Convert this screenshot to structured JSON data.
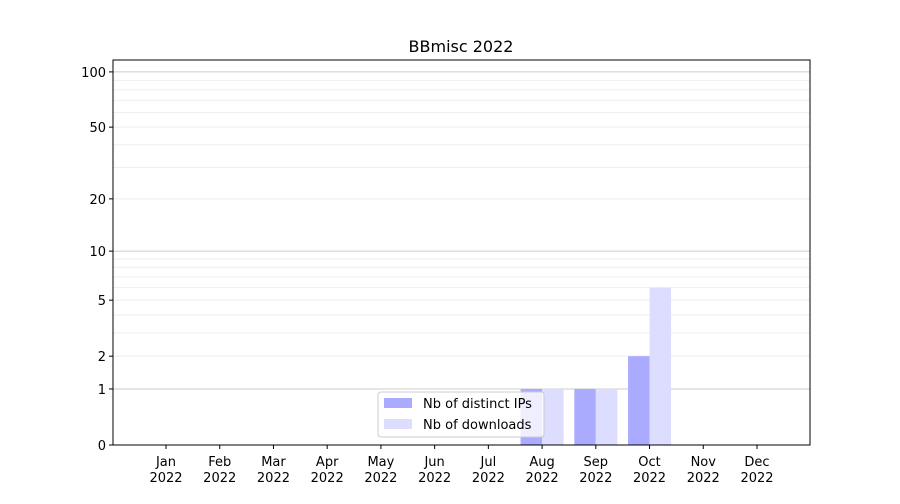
{
  "chart_data": {
    "type": "bar",
    "title": "BBmisc 2022",
    "xlabel": "",
    "ylabel": "",
    "yscale": "symlog (log10(1+y))",
    "ylim": [
      0,
      116
    ],
    "yticks": [
      0,
      1,
      2,
      5,
      10,
      20,
      50,
      100
    ],
    "grid": true,
    "legend_position": "lower-center",
    "categories": [
      "Jan\n2022",
      "Feb\n2022",
      "Mar\n2022",
      "Apr\n2022",
      "May\n2022",
      "Jun\n2022",
      "Jul\n2022",
      "Aug\n2022",
      "Sep\n2022",
      "Oct\n2022",
      "Nov\n2022",
      "Dec\n2022"
    ],
    "series": [
      {
        "name": "Nb of distinct IPs",
        "color": "#aaaaff",
        "values": [
          0,
          0,
          0,
          0,
          0,
          0,
          0,
          1,
          1,
          2,
          0,
          0
        ]
      },
      {
        "name": "Nb of downloads",
        "color": "#ddddff",
        "values": [
          0,
          0,
          0,
          0,
          0,
          0,
          0,
          1,
          1,
          6,
          0,
          0
        ]
      }
    ]
  }
}
